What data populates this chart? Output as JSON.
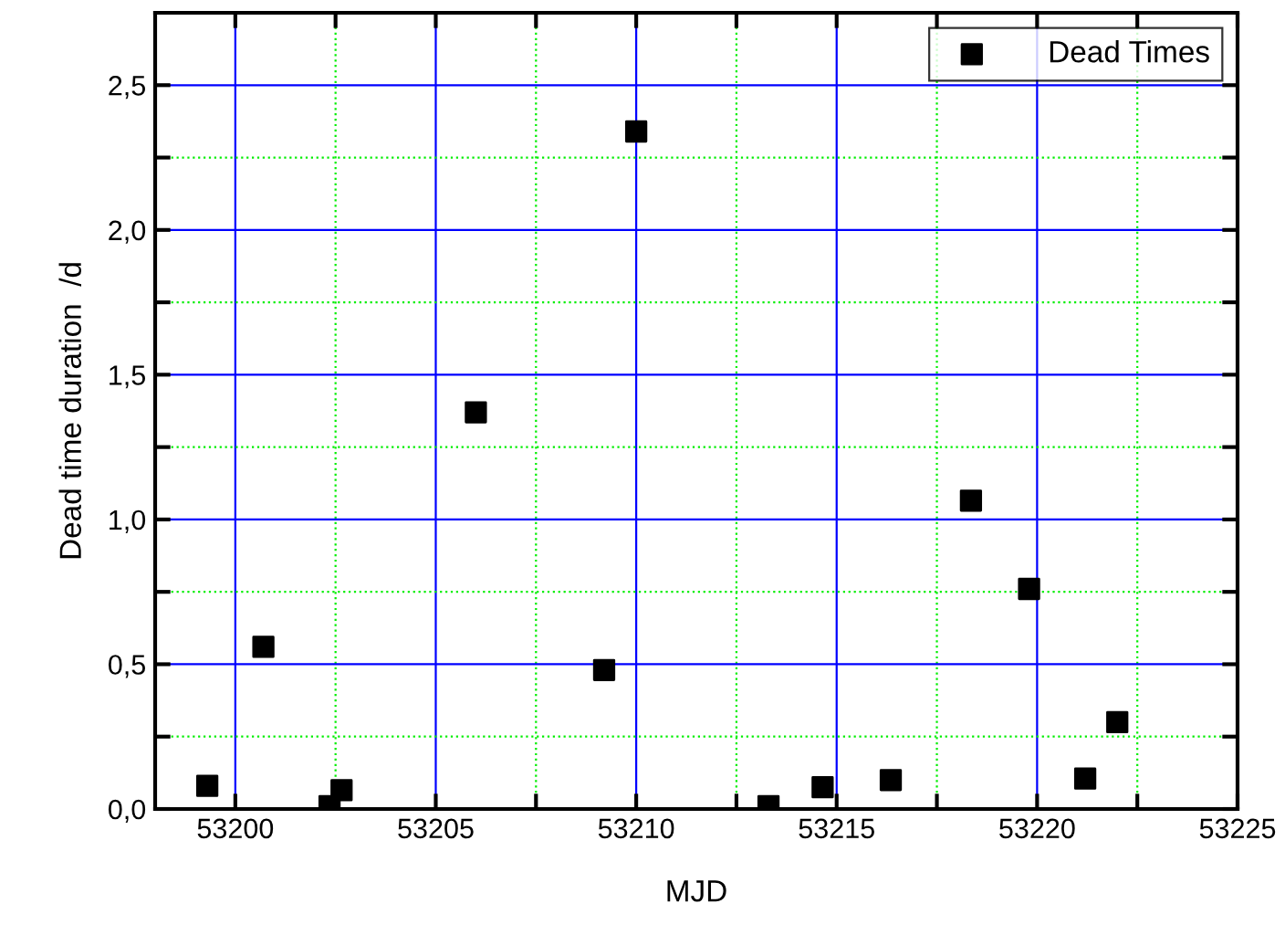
{
  "chart_data": {
    "type": "scatter",
    "xlabel": "MJD",
    "ylabel": "Dead time duration  /d",
    "x": [
      53199.3,
      53200.7,
      53202.35,
      53202.65,
      53206.0,
      53209.2,
      53210.0,
      53213.3,
      53214.65,
      53216.35,
      53218.35,
      53219.8,
      53221.2,
      53222.0
    ],
    "series": [
      {
        "name": "Dead Times",
        "color": "#000000",
        "values": [
          0.08,
          0.56,
          0.01,
          0.065,
          1.37,
          0.48,
          2.34,
          0.01,
          0.075,
          0.1,
          1.065,
          0.76,
          0.105,
          0.3
        ]
      }
    ],
    "xlim": [
      53198,
      53225
    ],
    "ylim": [
      0,
      2.75
    ],
    "xticks": [
      53200,
      {
        "value": 53202.5,
        "label": null
      },
      53205,
      {
        "value": 53207.5,
        "label": null
      },
      53210,
      {
        "value": 53212.5,
        "label": null
      },
      53215,
      {
        "value": 53217.5,
        "label": null
      },
      53220,
      {
        "value": 53222.5,
        "label": null
      },
      53225
    ],
    "yticks": [
      {
        "value": 0,
        "label": "0,0"
      },
      {
        "value": 0.25,
        "label": null
      },
      {
        "value": 0.5,
        "label": "0,5"
      },
      {
        "value": 0.75,
        "label": null
      },
      {
        "value": 1.0,
        "label": "1,0"
      },
      {
        "value": 1.25,
        "label": null
      },
      {
        "value": 1.5,
        "label": "1,5"
      },
      {
        "value": 1.75,
        "label": null
      },
      {
        "value": 2.0,
        "label": "2,0"
      },
      {
        "value": 2.25,
        "label": null
      },
      {
        "value": 2.5,
        "label": "2,5"
      }
    ],
    "grid": true,
    "legend": "top right",
    "marker": "square"
  }
}
